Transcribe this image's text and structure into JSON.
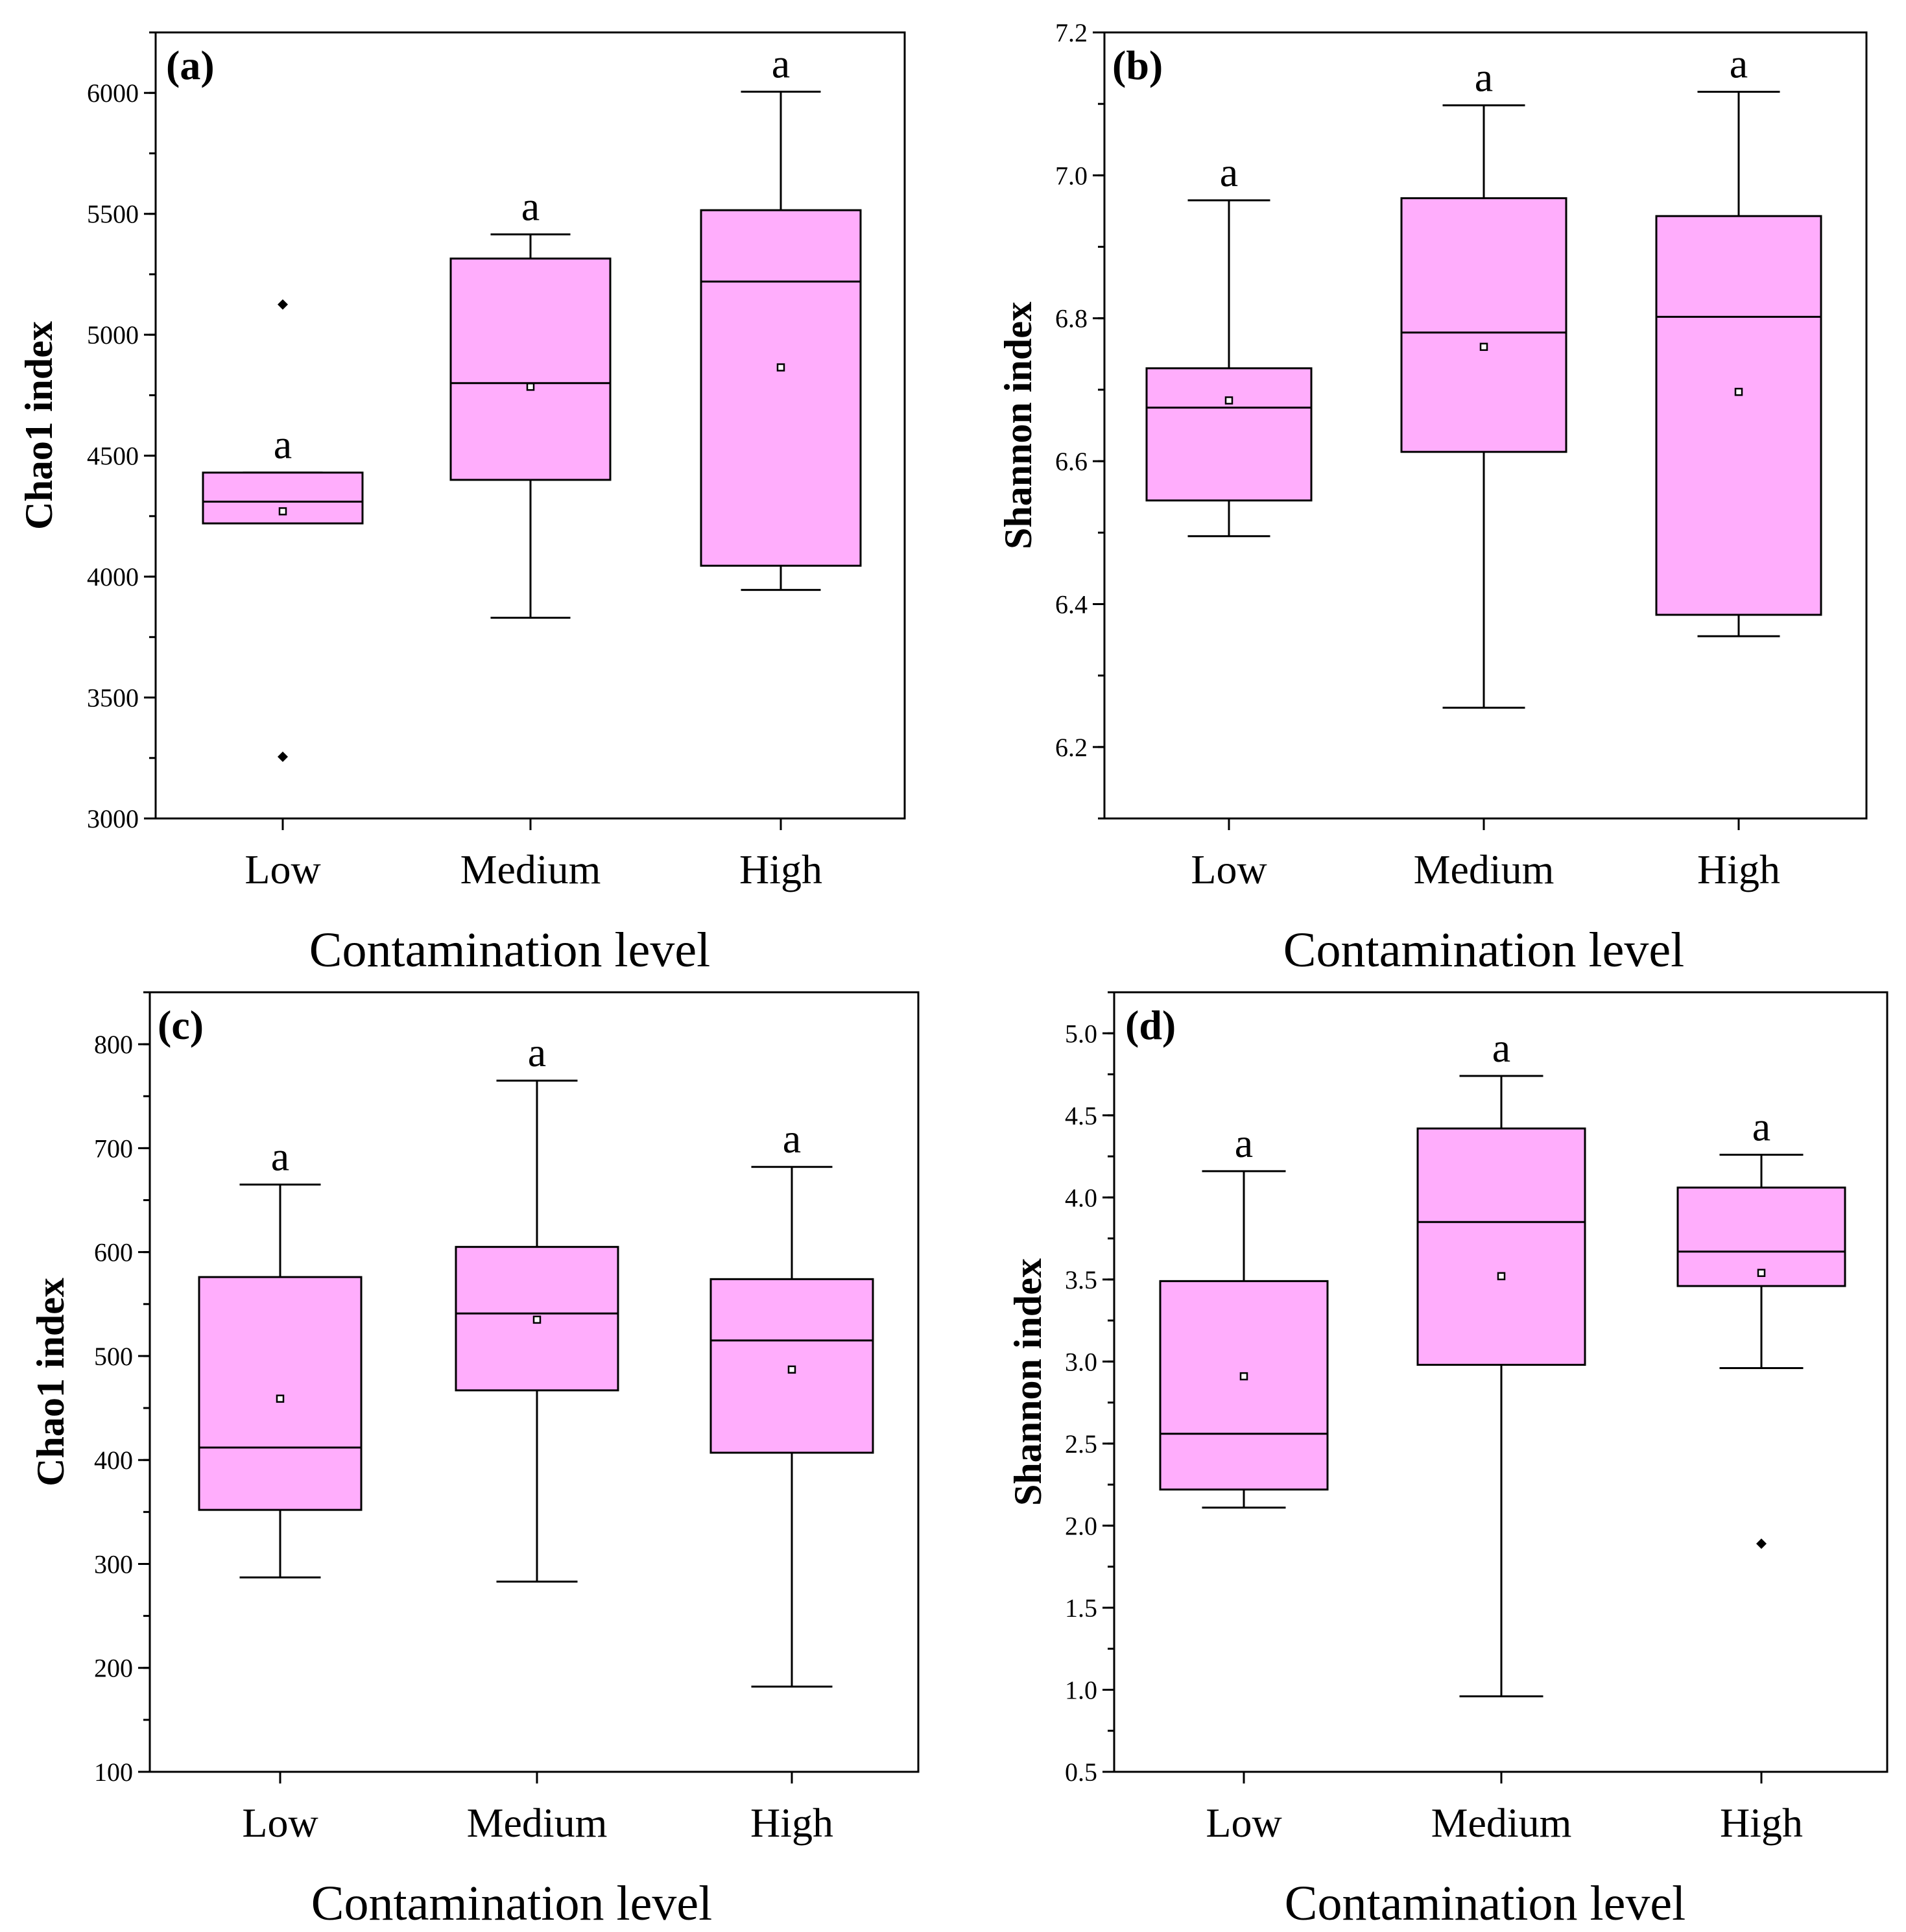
{
  "figure": {
    "box_color": "#ffadfc"
  },
  "chart_data": [
    {
      "id": "a",
      "type": "box",
      "panel_label": "(a)",
      "ylabel": "Chao1 index",
      "xlabel": "Contamination level",
      "ylim": [
        3000,
        6250
      ],
      "yticks": [
        3000,
        3500,
        4000,
        4500,
        5000,
        5500,
        6000
      ],
      "ytick_labels": [
        "3000",
        "3500",
        "4000",
        "4500",
        "5000",
        "5500",
        "6000"
      ],
      "minor_step": 250,
      "categories": [
        "Low",
        "Medium",
        "High"
      ],
      "boxes": [
        {
          "label": "Low",
          "whisker_low": 4220,
          "q1": 4220,
          "median": 4310,
          "q3": 4430,
          "whisker_high": 4430,
          "mean": 4270,
          "outliers": [
            5125,
            3255
          ],
          "letter": "a"
        },
        {
          "label": "Medium",
          "whisker_low": 3830,
          "q1": 4400,
          "median": 4800,
          "q3": 5315,
          "whisker_high": 5415,
          "mean": 4785,
          "outliers": [],
          "letter": "a"
        },
        {
          "label": "High",
          "whisker_low": 3945,
          "q1": 4045,
          "median": 5220,
          "q3": 5515,
          "whisker_high": 6005,
          "mean": 4865,
          "outliers": [],
          "letter": "a"
        }
      ]
    },
    {
      "id": "b",
      "type": "box",
      "panel_label": "(b)",
      "ylabel": "Shannon index",
      "xlabel": "Contamination level",
      "ylim": [
        6.1,
        7.2
      ],
      "yticks": [
        6.2,
        6.4,
        6.6,
        6.8,
        7.0,
        7.2
      ],
      "ytick_labels": [
        "6.2",
        "6.4",
        "6.6",
        "6.8",
        "7.0",
        "7.2"
      ],
      "minor_step": 0.1,
      "categories": [
        "Low",
        "Medium",
        "High"
      ],
      "boxes": [
        {
          "label": "Low",
          "whisker_low": 6.495,
          "q1": 6.545,
          "median": 6.675,
          "q3": 6.73,
          "whisker_high": 6.965,
          "mean": 6.685,
          "outliers": [],
          "letter": "a"
        },
        {
          "label": "Medium",
          "whisker_low": 6.255,
          "q1": 6.613,
          "median": 6.78,
          "q3": 6.968,
          "whisker_high": 7.098,
          "mean": 6.76,
          "outliers": [],
          "letter": "a"
        },
        {
          "label": "High",
          "whisker_low": 6.355,
          "q1": 6.385,
          "median": 6.802,
          "q3": 6.943,
          "whisker_high": 7.117,
          "mean": 6.697,
          "outliers": [],
          "letter": "a"
        }
      ]
    },
    {
      "id": "c",
      "type": "box",
      "panel_label": "(c)",
      "ylabel": "Chao1 index",
      "xlabel": "Contamination level",
      "ylim": [
        100,
        850
      ],
      "yticks": [
        100,
        200,
        300,
        400,
        500,
        600,
        700,
        800
      ],
      "ytick_labels": [
        "100",
        "200",
        "300",
        "400",
        "500",
        "600",
        "700",
        "800"
      ],
      "minor_step": 50,
      "categories": [
        "Low",
        "Medium",
        "High"
      ],
      "boxes": [
        {
          "label": "Low",
          "whisker_low": 287,
          "q1": 352,
          "median": 412,
          "q3": 576,
          "whisker_high": 665,
          "mean": 459,
          "outliers": [],
          "letter": "a"
        },
        {
          "label": "Medium",
          "whisker_low": 283,
          "q1": 467,
          "median": 541,
          "q3": 605,
          "whisker_high": 765,
          "mean": 535,
          "outliers": [],
          "letter": "a"
        },
        {
          "label": "High",
          "whisker_low": 182,
          "q1": 407,
          "median": 515,
          "q3": 574,
          "whisker_high": 682,
          "mean": 487,
          "outliers": [],
          "letter": "a"
        }
      ]
    },
    {
      "id": "d",
      "type": "box",
      "panel_label": "(d)",
      "ylabel": "Shannon index",
      "xlabel": "Contamination level",
      "ylim": [
        0.5,
        5.25
      ],
      "yticks": [
        0.5,
        1.0,
        1.5,
        2.0,
        2.5,
        3.0,
        3.5,
        4.0,
        4.5,
        5.0
      ],
      "ytick_labels": [
        "0.5",
        "1.0",
        "1.5",
        "2.0",
        "2.5",
        "3.0",
        "3.5",
        "4.0",
        "4.5",
        "5.0"
      ],
      "minor_step": 0.25,
      "categories": [
        "Low",
        "Medium",
        "High"
      ],
      "boxes": [
        {
          "label": "Low",
          "whisker_low": 2.11,
          "q1": 2.22,
          "median": 2.56,
          "q3": 3.49,
          "whisker_high": 4.16,
          "mean": 2.91,
          "outliers": [],
          "letter": "a"
        },
        {
          "label": "Medium",
          "whisker_low": 0.96,
          "q1": 2.98,
          "median": 3.85,
          "q3": 4.42,
          "whisker_high": 4.74,
          "mean": 3.52,
          "outliers": [],
          "letter": "a"
        },
        {
          "label": "High",
          "whisker_low": 2.96,
          "q1": 3.46,
          "median": 3.67,
          "q3": 4.06,
          "whisker_high": 4.26,
          "mean": 3.54,
          "outliers": [
            1.89
          ],
          "letter": "a"
        }
      ]
    }
  ]
}
